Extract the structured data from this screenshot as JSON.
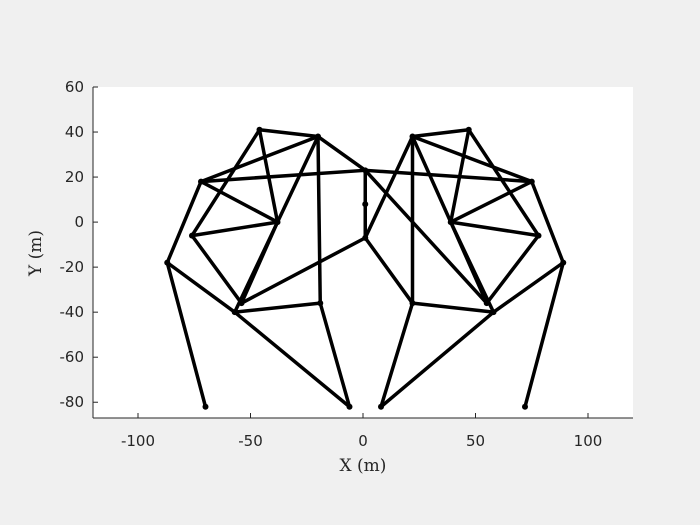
{
  "chart_data": {
    "type": "line",
    "xlabel": "X (m)",
    "ylabel": "Y (m)",
    "xlim": [
      -120,
      120
    ],
    "ylim": [
      -87,
      60
    ],
    "xticks": [
      -100,
      -50,
      0,
      50,
      100
    ],
    "xtick_labels": [
      "-100",
      "-50",
      "0",
      "50",
      "100"
    ],
    "yticks": [
      -80,
      -60,
      -40,
      -20,
      0,
      20,
      40,
      60
    ],
    "ytick_labels": [
      "-80",
      "-60",
      "-40",
      "-20",
      "0",
      "20",
      "40",
      "60"
    ],
    "grid": false,
    "line_color": "#000000",
    "plot_background": "#ffffff",
    "figure_background": "#f0f0f0",
    "nodes": [
      {
        "x": -46,
        "y": 41
      },
      {
        "x": -20,
        "y": 38
      },
      {
        "x": -72,
        "y": 18
      },
      {
        "x": -38,
        "y": 0
      },
      {
        "x": -76,
        "y": -6
      },
      {
        "x": -87,
        "y": -18
      },
      {
        "x": -54,
        "y": -36
      },
      {
        "x": -57,
        "y": -40
      },
      {
        "x": -19,
        "y": -36
      },
      {
        "x": -70,
        "y": -82
      },
      {
        "x": -6,
        "y": -82
      },
      {
        "x": 1,
        "y": 23
      },
      {
        "x": 1,
        "y": 8
      },
      {
        "x": 1,
        "y": -7
      },
      {
        "x": 47,
        "y": 41
      },
      {
        "x": 22,
        "y": 38
      },
      {
        "x": 75,
        "y": 18
      },
      {
        "x": 39,
        "y": 0
      },
      {
        "x": 78,
        "y": -6
      },
      {
        "x": 89,
        "y": -18
      },
      {
        "x": 55,
        "y": -36
      },
      {
        "x": 58,
        "y": -40
      },
      {
        "x": 22,
        "y": -36
      },
      {
        "x": 72,
        "y": -82
      },
      {
        "x": 8,
        "y": -82
      }
    ],
    "edges": [
      [
        0,
        1
      ],
      [
        0,
        3
      ],
      [
        0,
        4
      ],
      [
        1,
        2
      ],
      [
        1,
        3
      ],
      [
        1,
        8
      ],
      [
        1,
        11
      ],
      [
        2,
        3
      ],
      [
        2,
        5
      ],
      [
        3,
        4
      ],
      [
        3,
        6
      ],
      [
        3,
        7
      ],
      [
        4,
        6
      ],
      [
        5,
        7
      ],
      [
        5,
        9
      ],
      [
        7,
        8
      ],
      [
        7,
        10
      ],
      [
        8,
        10
      ],
      [
        6,
        13
      ],
      [
        11,
        12
      ],
      [
        12,
        13
      ],
      [
        11,
        13
      ],
      [
        11,
        2
      ],
      [
        14,
        15
      ],
      [
        14,
        17
      ],
      [
        14,
        18
      ],
      [
        15,
        16
      ],
      [
        15,
        17
      ],
      [
        15,
        22
      ],
      [
        15,
        13
      ],
      [
        16,
        17
      ],
      [
        16,
        19
      ],
      [
        17,
        18
      ],
      [
        17,
        20
      ],
      [
        17,
        21
      ],
      [
        18,
        20
      ],
      [
        19,
        21
      ],
      [
        19,
        23
      ],
      [
        21,
        22
      ],
      [
        21,
        24
      ],
      [
        22,
        24
      ],
      [
        20,
        11
      ],
      [
        13,
        22
      ],
      [
        11,
        16
      ]
    ]
  }
}
